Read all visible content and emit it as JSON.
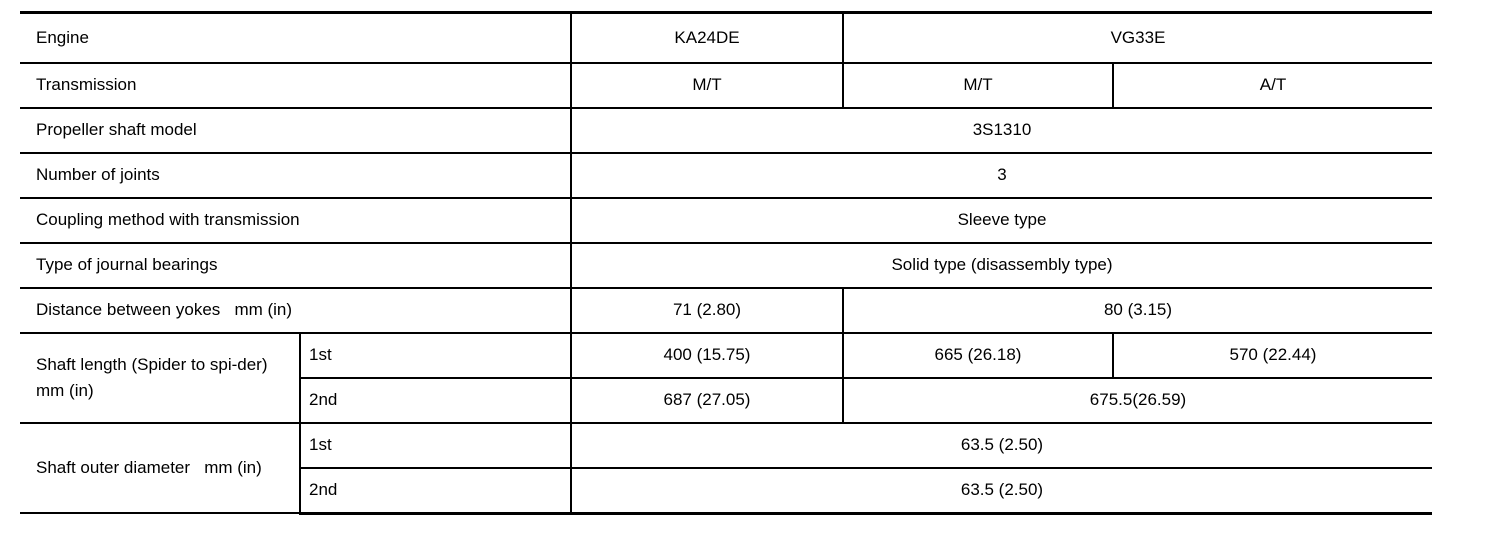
{
  "rows": {
    "engine": {
      "label": "Engine",
      "ka24de": "KA24DE",
      "vg33e": "VG33E"
    },
    "transmission": {
      "label": "Transmission",
      "ka_mt": "M/T",
      "vg_mt": "M/T",
      "vg_at": "A/T"
    },
    "shaft_model": {
      "label": "Propeller shaft model",
      "value": "3S1310"
    },
    "joints": {
      "label": "Number of joints",
      "value": "3"
    },
    "coupling": {
      "label": "Coupling method with transmission",
      "value": "Sleeve type"
    },
    "bearings": {
      "label": "Type of journal bearings",
      "value": "Solid type (disassembly type)"
    },
    "yokes": {
      "label": "Distance between yokes   mm (in)",
      "ka": "71 (2.80)",
      "vg": "80 (3.15)"
    },
    "shaft_length": {
      "label": "Shaft length (Spider to spi-der)   mm (in)",
      "first": {
        "label": "1st",
        "ka_mt": "400 (15.75)",
        "vg_mt": "665 (26.18)",
        "vg_at": "570 (22.44)"
      },
      "second": {
        "label": "2nd",
        "ka_mt": "687 (27.05)",
        "vg": "675.5(26.59)"
      }
    },
    "outer_diameter": {
      "label": "Shaft outer diameter   mm (in)",
      "first": {
        "label": "1st",
        "value": "63.5 (2.50)"
      },
      "second": {
        "label": "2nd",
        "value": "63.5 (2.50)"
      }
    }
  }
}
